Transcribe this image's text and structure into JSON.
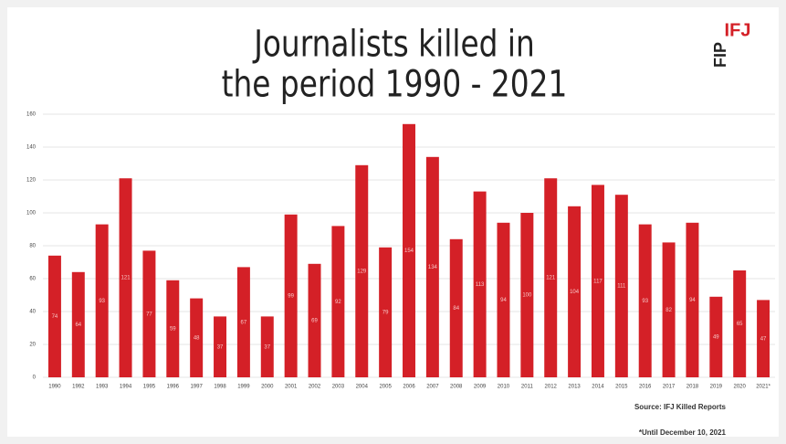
{
  "chart_data": {
    "type": "bar",
    "title_lines": [
      "Journalists killed in",
      "the period 1990 - 2021"
    ],
    "logo": [
      "IFJ",
      "FIP"
    ],
    "source": "Source: IFJ Killed Reports",
    "note": "*Until December 10, 2021",
    "categories": [
      "1990",
      "1992",
      "1993",
      "1994",
      "1995",
      "1996",
      "1997",
      "1998",
      "1999",
      "2000",
      "2001",
      "2002",
      "2003",
      "2004",
      "2005",
      "2006",
      "2007",
      "2008",
      "2009",
      "2010",
      "2011",
      "2012",
      "2013",
      "2014",
      "2015",
      "2016",
      "2017",
      "2018",
      "2019",
      "2020",
      "2021*"
    ],
    "values": [
      74,
      64,
      93,
      121,
      77,
      59,
      48,
      37,
      67,
      37,
      99,
      69,
      92,
      129,
      79,
      154,
      134,
      84,
      113,
      94,
      100,
      121,
      104,
      117,
      111,
      93,
      82,
      94,
      49,
      65,
      47
    ],
    "color": "#d42027",
    "ylim": [
      0,
      160
    ],
    "yticks": [
      0,
      20,
      40,
      60,
      80,
      100,
      120,
      140,
      160
    ],
    "grid": true
  }
}
